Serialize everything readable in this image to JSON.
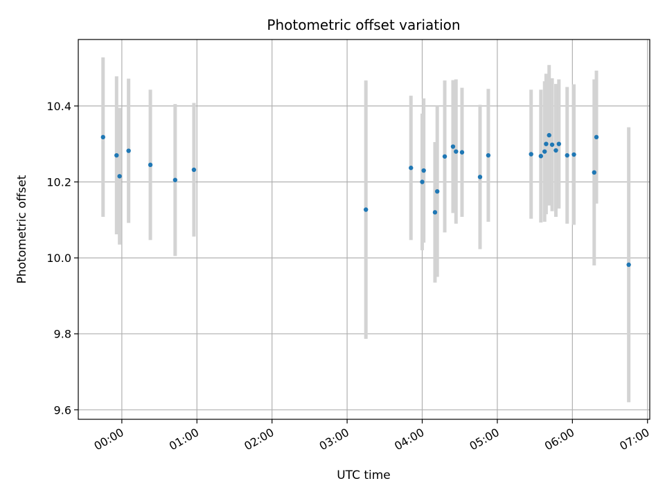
{
  "chart_data": {
    "type": "scatter",
    "title": "Photometric offset variation",
    "xlabel": "UTC time",
    "ylabel": "Photometric offset",
    "x_unit": "hours",
    "xlim": [
      -0.58,
      7.03
    ],
    "ylim": [
      9.575,
      10.575
    ],
    "grid": true,
    "x_ticks": [
      {
        "value": 0,
        "label": "00:00"
      },
      {
        "value": 1,
        "label": "01:00"
      },
      {
        "value": 2,
        "label": "02:00"
      },
      {
        "value": 3,
        "label": "03:00"
      },
      {
        "value": 4,
        "label": "04:00"
      },
      {
        "value": 5,
        "label": "05:00"
      },
      {
        "value": 6,
        "label": "06:00"
      },
      {
        "value": 7,
        "label": "07:00"
      }
    ],
    "y_ticks": [
      {
        "value": 9.6,
        "label": "9.6"
      },
      {
        "value": 9.8,
        "label": "9.8"
      },
      {
        "value": 10.0,
        "label": "10.0"
      },
      {
        "value": 10.2,
        "label": "10.2"
      },
      {
        "value": 10.4,
        "label": "10.4"
      }
    ],
    "colors": {
      "marker": "#1f77b4",
      "errorbar": "#d3d3d3",
      "grid": "#b0b0b0"
    },
    "points": [
      {
        "x": -0.25,
        "y": 10.318,
        "err": 0.21
      },
      {
        "x": -0.07,
        "y": 10.27,
        "err": 0.208
      },
      {
        "x": -0.03,
        "y": 10.215,
        "err": 0.18
      },
      {
        "x": 0.09,
        "y": 10.282,
        "err": 0.19
      },
      {
        "x": 0.38,
        "y": 10.245,
        "err": 0.198
      },
      {
        "x": 0.71,
        "y": 10.205,
        "err": 0.2
      },
      {
        "x": 0.96,
        "y": 10.232,
        "err": 0.176
      },
      {
        "x": 3.25,
        "y": 10.127,
        "err": 0.34
      },
      {
        "x": 3.85,
        "y": 10.237,
        "err": 0.19
      },
      {
        "x": 4.0,
        "y": 10.2,
        "err": 0.18
      },
      {
        "x": 4.02,
        "y": 10.23,
        "err": 0.19
      },
      {
        "x": 4.17,
        "y": 10.12,
        "err": 0.185
      },
      {
        "x": 4.2,
        "y": 10.175,
        "err": 0.225
      },
      {
        "x": 4.3,
        "y": 10.267,
        "err": 0.2
      },
      {
        "x": 4.41,
        "y": 10.293,
        "err": 0.175
      },
      {
        "x": 4.45,
        "y": 10.28,
        "err": 0.19
      },
      {
        "x": 4.53,
        "y": 10.278,
        "err": 0.17
      },
      {
        "x": 4.77,
        "y": 10.213,
        "err": 0.19
      },
      {
        "x": 4.88,
        "y": 10.27,
        "err": 0.175
      },
      {
        "x": 5.45,
        "y": 10.273,
        "err": 0.17
      },
      {
        "x": 5.58,
        "y": 10.268,
        "err": 0.175
      },
      {
        "x": 5.63,
        "y": 10.28,
        "err": 0.185
      },
      {
        "x": 5.65,
        "y": 10.3,
        "err": 0.185
      },
      {
        "x": 5.69,
        "y": 10.323,
        "err": 0.185
      },
      {
        "x": 5.73,
        "y": 10.298,
        "err": 0.175
      },
      {
        "x": 5.78,
        "y": 10.283,
        "err": 0.175
      },
      {
        "x": 5.82,
        "y": 10.3,
        "err": 0.17
      },
      {
        "x": 5.93,
        "y": 10.27,
        "err": 0.18
      },
      {
        "x": 6.02,
        "y": 10.272,
        "err": 0.185
      },
      {
        "x": 6.29,
        "y": 10.225,
        "err": 0.245
      },
      {
        "x": 6.32,
        "y": 10.318,
        "err": 0.175
      },
      {
        "x": 6.75,
        "y": 9.982,
        "err": 0.362
      }
    ]
  }
}
